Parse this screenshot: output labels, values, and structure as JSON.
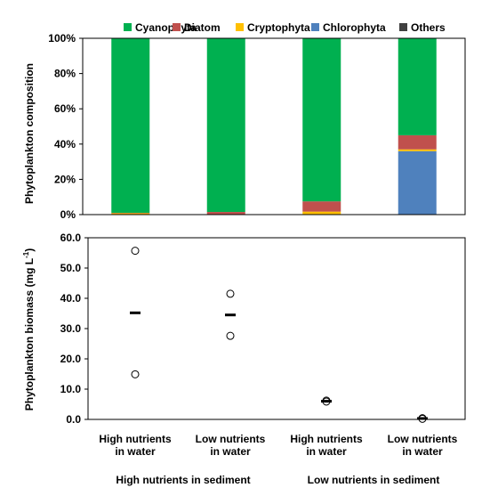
{
  "chart_data": [
    {
      "type": "bar",
      "stacked": true,
      "categories": [
        [
          "High nutrients",
          "in water"
        ],
        [
          "Low nutrients",
          "in water"
        ],
        [
          "High nutrients",
          "in water"
        ],
        [
          "Low nutrients",
          "in water"
        ]
      ],
      "ylabel": "Phytoplankton composition",
      "ylim": [
        0,
        100
      ],
      "yticks": [
        "0%",
        "20%",
        "40%",
        "60%",
        "80%",
        "100%"
      ],
      "legend_position": "top",
      "series": [
        {
          "name": "Cyanophyta",
          "color": "#00b050",
          "values": [
            99,
            98.5,
            92.5,
            55
          ]
        },
        {
          "name": "Diatom",
          "color": "#c0504d",
          "values": [
            0.2,
            1.3,
            5.8,
            8.0
          ]
        },
        {
          "name": "Cryptophyta",
          "color": "#ffc000",
          "values": [
            0.8,
            0.2,
            1.7,
            1.0
          ]
        },
        {
          "name": "Chlorophyta",
          "color": "#4f81bd",
          "values": [
            0,
            0,
            0,
            36
          ]
        },
        {
          "name": "Others",
          "color": "#404040",
          "values": [
            0,
            0,
            0,
            0
          ]
        }
      ],
      "stack_order": [
        "Chlorophyta",
        "Cryptophyta",
        "Diatom",
        "Cyanophyta",
        "Others"
      ]
    },
    {
      "type": "scatter",
      "categories": [
        [
          "High nutrients",
          "in water"
        ],
        [
          "Low nutrients",
          "in water"
        ],
        [
          "High nutrients",
          "in water"
        ],
        [
          "Low nutrients",
          "in water"
        ]
      ],
      "group_labels": [
        "High nutrients in sediment",
        "Low nutrients in sediment"
      ],
      "ylabel": "Phytoplankton biomass (mg L",
      "ylabel_superscript": "-1",
      "ylabel_suffix": ")",
      "ylim": [
        0,
        60
      ],
      "yticks": [
        "0.0",
        "10.0",
        "20.0",
        "30.0",
        "40.0",
        "50.0",
        "60.0"
      ],
      "points": [
        [
          55.7,
          14.9
        ],
        [
          41.5,
          27.6
        ],
        [
          6.2,
          5.9
        ],
        [
          0.4,
          0.2
        ]
      ],
      "means": [
        35.2,
        34.5,
        6.0,
        0.3
      ]
    }
  ]
}
